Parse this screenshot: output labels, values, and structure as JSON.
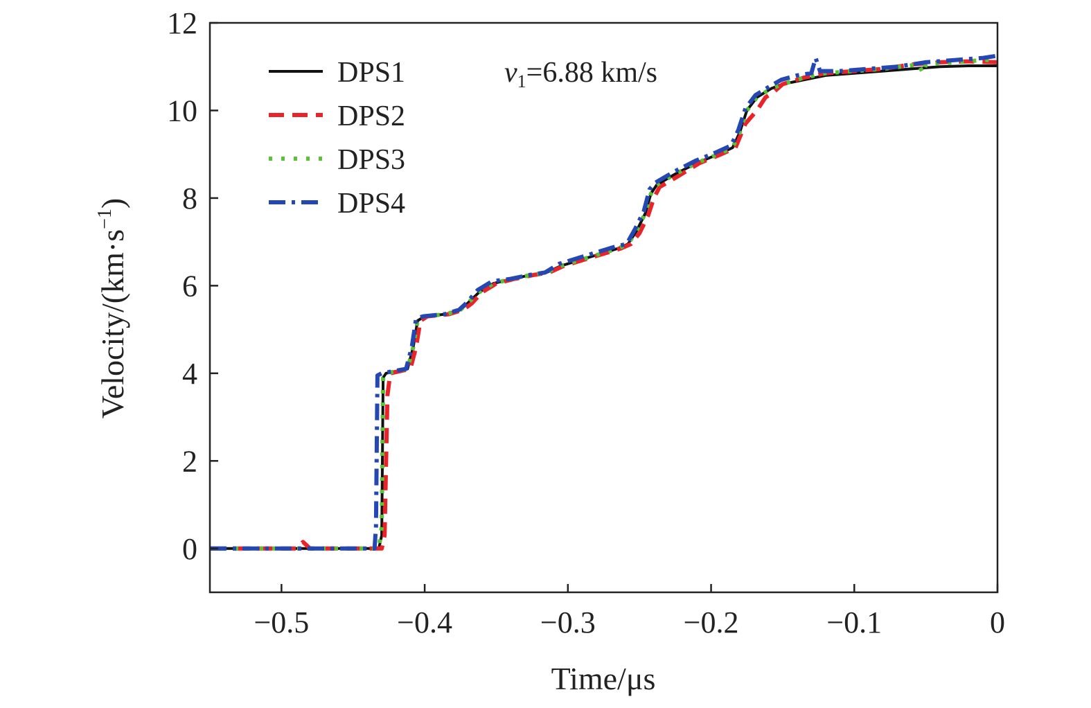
{
  "chart_data": {
    "type": "line",
    "xlabel": "Time/μs",
    "ylabel": {
      "base": "Velocity/(km·s",
      "sup": "−1",
      "close": ")"
    },
    "xlim": [
      -0.55,
      0
    ],
    "ylim": [
      -1,
      12
    ],
    "x_ticks": [
      -0.5,
      -0.4,
      -0.3,
      -0.2,
      -0.1,
      0
    ],
    "x_tick_labels": [
      "−0.5",
      "−0.4",
      "−0.3",
      "−0.2",
      "−0.1",
      "0"
    ],
    "y_ticks": [
      0,
      2,
      4,
      6,
      8,
      10,
      12
    ],
    "y_tick_labels": [
      "0",
      "2",
      "4",
      "6",
      "8",
      "10",
      "12"
    ],
    "legend_position": "top-left",
    "annotation": {
      "var": "v",
      "sub": "1",
      "text": "=6.88 km/s"
    },
    "series": [
      {
        "name": "DPS1",
        "color": "#111111",
        "style": "solid",
        "points": [
          [
            -0.55,
            0
          ],
          [
            -0.432,
            0
          ],
          [
            -0.43,
            0.3
          ],
          [
            -0.429,
            3.9
          ],
          [
            -0.427,
            4.0
          ],
          [
            -0.412,
            4.1
          ],
          [
            -0.408,
            4.6
          ],
          [
            -0.405,
            5.2
          ],
          [
            -0.4,
            5.3
          ],
          [
            -0.385,
            5.35
          ],
          [
            -0.375,
            5.45
          ],
          [
            -0.37,
            5.6
          ],
          [
            -0.362,
            5.85
          ],
          [
            -0.352,
            6.05
          ],
          [
            -0.34,
            6.15
          ],
          [
            -0.325,
            6.25
          ],
          [
            -0.315,
            6.3
          ],
          [
            -0.305,
            6.45
          ],
          [
            -0.29,
            6.6
          ],
          [
            -0.275,
            6.75
          ],
          [
            -0.265,
            6.85
          ],
          [
            -0.258,
            6.95
          ],
          [
            -0.252,
            7.25
          ],
          [
            -0.246,
            7.65
          ],
          [
            -0.242,
            8.1
          ],
          [
            -0.238,
            8.3
          ],
          [
            -0.225,
            8.55
          ],
          [
            -0.21,
            8.8
          ],
          [
            -0.195,
            9.0
          ],
          [
            -0.185,
            9.15
          ],
          [
            -0.18,
            9.5
          ],
          [
            -0.175,
            10.0
          ],
          [
            -0.168,
            10.3
          ],
          [
            -0.158,
            10.5
          ],
          [
            -0.15,
            10.6
          ],
          [
            -0.135,
            10.7
          ],
          [
            -0.12,
            10.8
          ],
          [
            -0.1,
            10.85
          ],
          [
            -0.08,
            10.9
          ],
          [
            -0.06,
            10.95
          ],
          [
            -0.04,
            11.0
          ],
          [
            -0.02,
            11.02
          ],
          [
            0,
            11.02
          ]
        ]
      },
      {
        "name": "DPS2",
        "color": "#e8232a",
        "style": "dashed",
        "points": [
          [
            -0.55,
            0
          ],
          [
            -0.49,
            0
          ],
          [
            -0.485,
            0.15
          ],
          [
            -0.48,
            0
          ],
          [
            -0.43,
            0
          ],
          [
            -0.428,
            0.3
          ],
          [
            -0.426,
            3.5
          ],
          [
            -0.424,
            4.0
          ],
          [
            -0.41,
            4.1
          ],
          [
            -0.406,
            4.6
          ],
          [
            -0.403,
            5.2
          ],
          [
            -0.398,
            5.3
          ],
          [
            -0.383,
            5.35
          ],
          [
            -0.373,
            5.45
          ],
          [
            -0.367,
            5.6
          ],
          [
            -0.36,
            5.85
          ],
          [
            -0.35,
            6.05
          ],
          [
            -0.338,
            6.15
          ],
          [
            -0.323,
            6.25
          ],
          [
            -0.313,
            6.3
          ],
          [
            -0.303,
            6.45
          ],
          [
            -0.288,
            6.6
          ],
          [
            -0.273,
            6.75
          ],
          [
            -0.263,
            6.85
          ],
          [
            -0.256,
            6.95
          ],
          [
            -0.25,
            7.2
          ],
          [
            -0.244,
            7.6
          ],
          [
            -0.24,
            8.0
          ],
          [
            -0.236,
            8.25
          ],
          [
            -0.223,
            8.5
          ],
          [
            -0.208,
            8.8
          ],
          [
            -0.193,
            9.0
          ],
          [
            -0.183,
            9.15
          ],
          [
            -0.176,
            9.7
          ],
          [
            -0.168,
            10.0
          ],
          [
            -0.162,
            10.3
          ],
          [
            -0.157,
            10.4
          ],
          [
            -0.15,
            10.6
          ],
          [
            -0.135,
            10.75
          ],
          [
            -0.12,
            10.85
          ],
          [
            -0.1,
            10.9
          ],
          [
            -0.08,
            10.95
          ],
          [
            -0.06,
            11.05
          ],
          [
            -0.04,
            11.1
          ],
          [
            -0.02,
            11.12
          ],
          [
            0,
            11.1
          ]
        ]
      },
      {
        "name": "DPS3",
        "color": "#5bc236",
        "style": "dotted",
        "points": [
          [
            -0.55,
            0
          ],
          [
            -0.432,
            0
          ],
          [
            -0.43,
            0.5
          ],
          [
            -0.429,
            3.9
          ],
          [
            -0.427,
            4.0
          ],
          [
            -0.412,
            4.1
          ],
          [
            -0.408,
            4.6
          ],
          [
            -0.405,
            5.2
          ],
          [
            -0.4,
            5.3
          ],
          [
            -0.385,
            5.35
          ],
          [
            -0.375,
            5.45
          ],
          [
            -0.37,
            5.6
          ],
          [
            -0.362,
            5.85
          ],
          [
            -0.352,
            6.05
          ],
          [
            -0.34,
            6.15
          ],
          [
            -0.325,
            6.25
          ],
          [
            -0.315,
            6.3
          ],
          [
            -0.305,
            6.45
          ],
          [
            -0.29,
            6.6
          ],
          [
            -0.275,
            6.75
          ],
          [
            -0.265,
            6.85
          ],
          [
            -0.258,
            6.95
          ],
          [
            -0.252,
            7.25
          ],
          [
            -0.246,
            7.65
          ],
          [
            -0.242,
            8.1
          ],
          [
            -0.238,
            8.3
          ],
          [
            -0.225,
            8.55
          ],
          [
            -0.21,
            8.8
          ],
          [
            -0.195,
            9.0
          ],
          [
            -0.185,
            9.15
          ],
          [
            -0.18,
            9.5
          ],
          [
            -0.175,
            10.0
          ],
          [
            -0.168,
            10.3
          ],
          [
            -0.158,
            10.5
          ],
          [
            -0.15,
            10.6
          ],
          [
            -0.135,
            10.75
          ],
          [
            -0.12,
            10.85
          ],
          [
            -0.1,
            10.9
          ],
          [
            -0.08,
            10.95
          ],
          [
            -0.055,
            11.05
          ],
          [
            -0.052,
            10.85
          ],
          [
            -0.05,
            11.05
          ],
          [
            -0.03,
            11.1
          ],
          [
            -0.01,
            11.15
          ],
          [
            0,
            11.15
          ]
        ]
      },
      {
        "name": "DPS4",
        "color": "#2447b3",
        "style": "dashdot",
        "points": [
          [
            -0.55,
            0
          ],
          [
            -0.435,
            0
          ],
          [
            -0.434,
            0.5
          ],
          [
            -0.433,
            3.95
          ],
          [
            -0.43,
            4.0
          ],
          [
            -0.413,
            4.1
          ],
          [
            -0.409,
            4.6
          ],
          [
            -0.406,
            5.25
          ],
          [
            -0.401,
            5.3
          ],
          [
            -0.386,
            5.35
          ],
          [
            -0.376,
            5.45
          ],
          [
            -0.371,
            5.6
          ],
          [
            -0.363,
            5.9
          ],
          [
            -0.353,
            6.1
          ],
          [
            -0.341,
            6.15
          ],
          [
            -0.326,
            6.25
          ],
          [
            -0.316,
            6.3
          ],
          [
            -0.306,
            6.5
          ],
          [
            -0.291,
            6.65
          ],
          [
            -0.276,
            6.8
          ],
          [
            -0.266,
            6.9
          ],
          [
            -0.259,
            6.95
          ],
          [
            -0.253,
            7.3
          ],
          [
            -0.247,
            7.7
          ],
          [
            -0.243,
            8.2
          ],
          [
            -0.239,
            8.35
          ],
          [
            -0.226,
            8.6
          ],
          [
            -0.211,
            8.85
          ],
          [
            -0.196,
            9.05
          ],
          [
            -0.186,
            9.2
          ],
          [
            -0.181,
            9.55
          ],
          [
            -0.176,
            10.05
          ],
          [
            -0.169,
            10.35
          ],
          [
            -0.159,
            10.55
          ],
          [
            -0.151,
            10.7
          ],
          [
            -0.14,
            10.8
          ],
          [
            -0.13,
            10.85
          ],
          [
            -0.127,
            11.2
          ],
          [
            -0.124,
            10.9
          ],
          [
            -0.11,
            10.9
          ],
          [
            -0.09,
            10.95
          ],
          [
            -0.07,
            11.0
          ],
          [
            -0.05,
            11.1
          ],
          [
            -0.03,
            11.15
          ],
          [
            -0.01,
            11.2
          ],
          [
            0,
            11.25
          ]
        ]
      }
    ]
  }
}
